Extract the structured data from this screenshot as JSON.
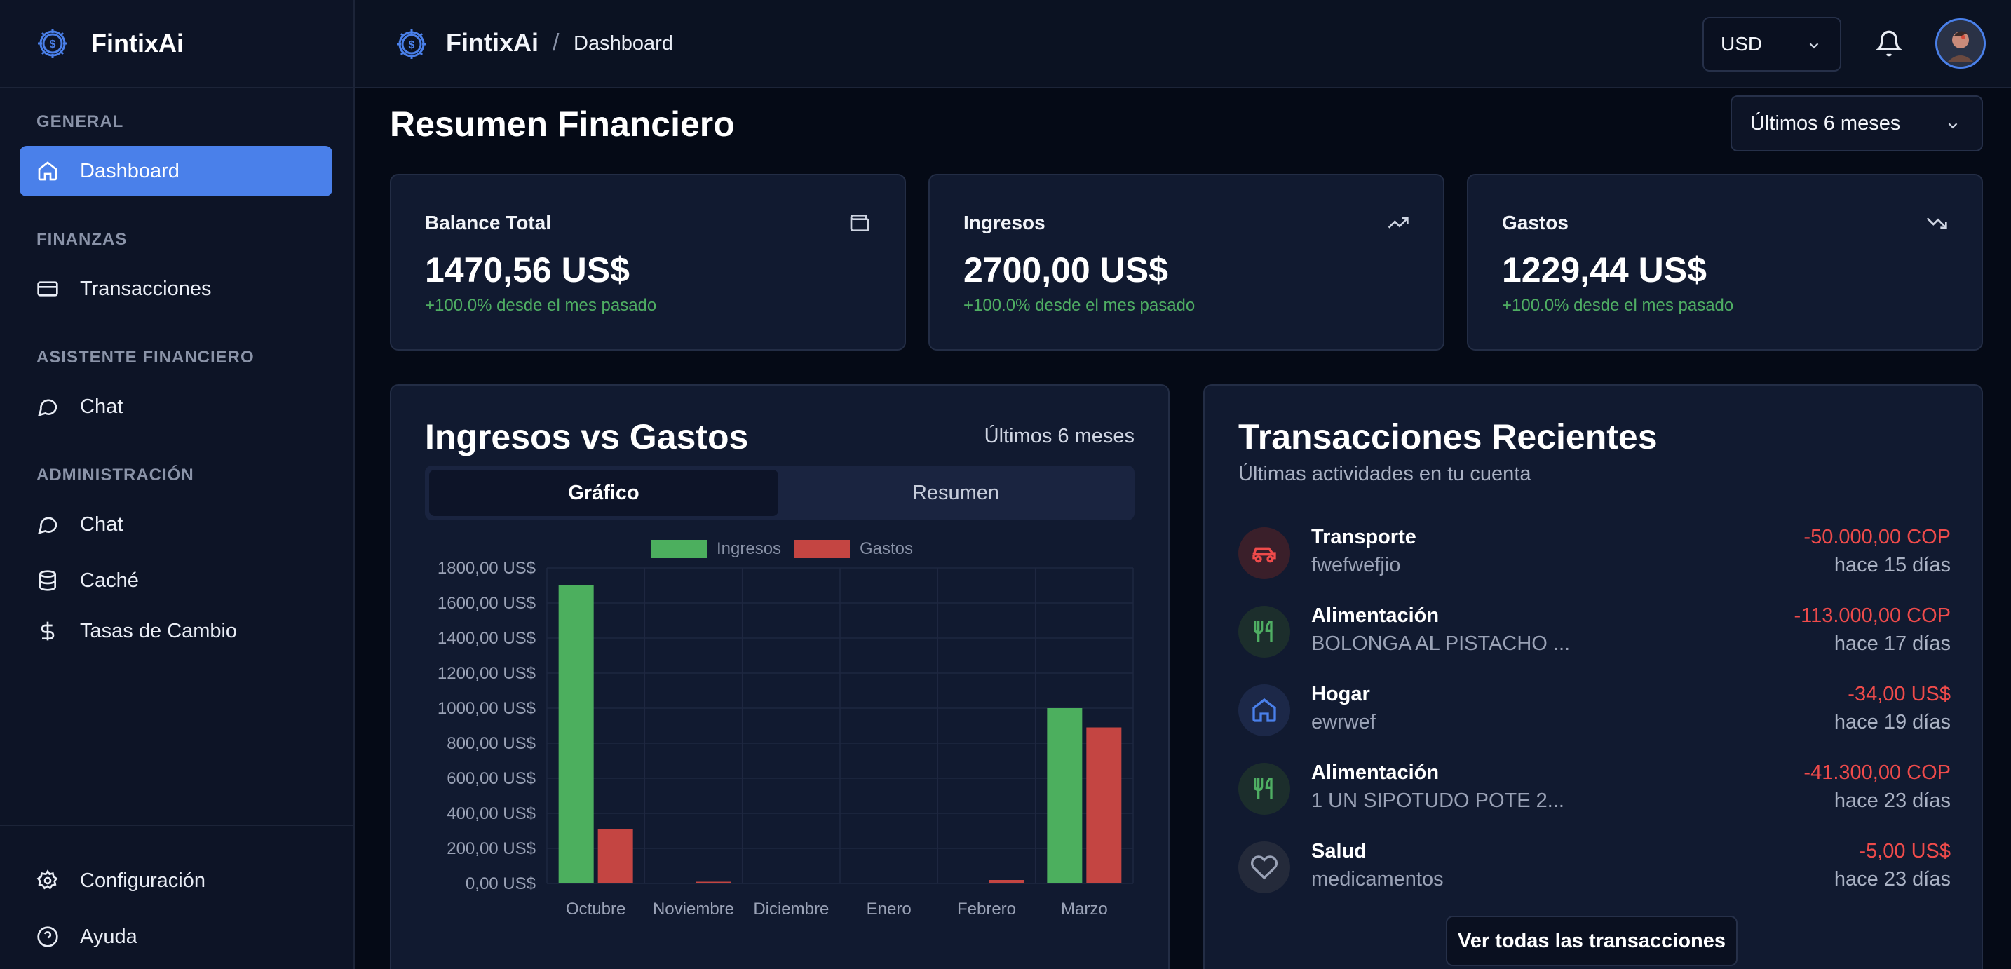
{
  "app": {
    "name": "FintixAi"
  },
  "sidebar": {
    "sections": [
      {
        "title": "GENERAL",
        "items": [
          {
            "label": "Dashboard",
            "icon": "home-icon",
            "active": true
          }
        ]
      },
      {
        "title": "FINANZAS",
        "items": [
          {
            "label": "Transacciones",
            "icon": "credit-card-icon"
          }
        ]
      },
      {
        "title": "ASISTENTE FINANCIERO",
        "items": [
          {
            "label": "Chat",
            "icon": "chat-bubble-icon"
          }
        ]
      },
      {
        "title": "ADMINISTRACIÓN",
        "items": [
          {
            "label": "Chat",
            "icon": "chat-bubble-icon"
          },
          {
            "label": "Caché",
            "icon": "database-icon"
          },
          {
            "label": "Tasas de Cambio",
            "icon": "dollar-icon"
          }
        ]
      }
    ],
    "footer": [
      {
        "label": "Configuración",
        "icon": "gear-icon"
      },
      {
        "label": "Ayuda",
        "icon": "help-circle-icon"
      }
    ]
  },
  "header": {
    "brand": "FintixAi",
    "separator": "/",
    "breadcrumb": "Dashboard",
    "currency": "USD"
  },
  "main": {
    "title": "Resumen Financiero",
    "range": "Últimos 6 meses",
    "stats": [
      {
        "label": "Balance Total",
        "value": "1470,56 US$",
        "delta": "+100.0% desde el mes pasado",
        "icon": "wallet-icon"
      },
      {
        "label": "Ingresos",
        "value": "2700,00 US$",
        "delta": "+100.0% desde el mes pasado",
        "icon": "trending-up-icon"
      },
      {
        "label": "Gastos",
        "value": "1229,44 US$",
        "delta": "+100.0% desde el mes pasado",
        "icon": "trending-down-icon"
      }
    ],
    "chart_card": {
      "title": "Ingresos vs Gastos",
      "range": "Últimos 6 meses",
      "tabs": [
        "Gráfico",
        "Resumen"
      ]
    },
    "transactions": {
      "title": "Transacciones Recientes",
      "subtitle": "Últimas actividades en tu cuenta",
      "items": [
        {
          "category": "Transporte",
          "description": "fwefwefjio",
          "amount": "-50.000,00 COP",
          "date": "hace 15 días",
          "icon": "car-icon",
          "color": "#ef4b4b"
        },
        {
          "category": "Alimentación",
          "description": "BOLONGA AL PISTACHO ...",
          "amount": "-113.000,00 COP",
          "date": "hace 17 días",
          "icon": "utensils-icon",
          "color": "#4fae63"
        },
        {
          "category": "Hogar",
          "description": "ewrwef",
          "amount": "-34,00 US$",
          "date": "hace 19 días",
          "icon": "home-icon",
          "color": "#4a80ea"
        },
        {
          "category": "Alimentación",
          "description": "1 UN SIPOTUDO POTE 2...",
          "amount": "-41.300,00 COP",
          "date": "hace 23 días",
          "icon": "utensils-icon",
          "color": "#4fae63"
        },
        {
          "category": "Salud",
          "description": "medicamentos",
          "amount": "-5,00 US$",
          "date": "hace 23 días",
          "icon": "heart-icon",
          "color": "#9aa2b6"
        }
      ],
      "see_all": "Ver todas las transacciones"
    }
  },
  "colors": {
    "accent": "#4a80ea",
    "income": "#4caf5e",
    "expense": "#c44542",
    "positive": "#4fae63",
    "negative": "#ef4b4b"
  },
  "chart_data": {
    "type": "bar",
    "categories": [
      "Octubre",
      "Noviembre",
      "Diciembre",
      "Enero",
      "Febrero",
      "Marzo"
    ],
    "series": [
      {
        "name": "Ingresos",
        "values": [
          1700,
          0,
          0,
          0,
          0,
          1000
        ]
      },
      {
        "name": "Gastos",
        "values": [
          310,
          10,
          0,
          0,
          20,
          890
        ]
      }
    ],
    "ylim": [
      0,
      1800
    ],
    "yticks": [
      0,
      200,
      400,
      600,
      800,
      1000,
      1200,
      1400,
      1600,
      1800
    ],
    "ytick_labels": [
      "0,00 US$",
      "200,00 US$",
      "400,00 US$",
      "600,00 US$",
      "800,00 US$",
      "1000,00 US$",
      "1200,00 US$",
      "1400,00 US$",
      "1600,00 US$",
      "1800,00 US$"
    ],
    "legend": [
      "Ingresos",
      "Gastos"
    ],
    "legend_position": "top-center",
    "grid": true
  }
}
